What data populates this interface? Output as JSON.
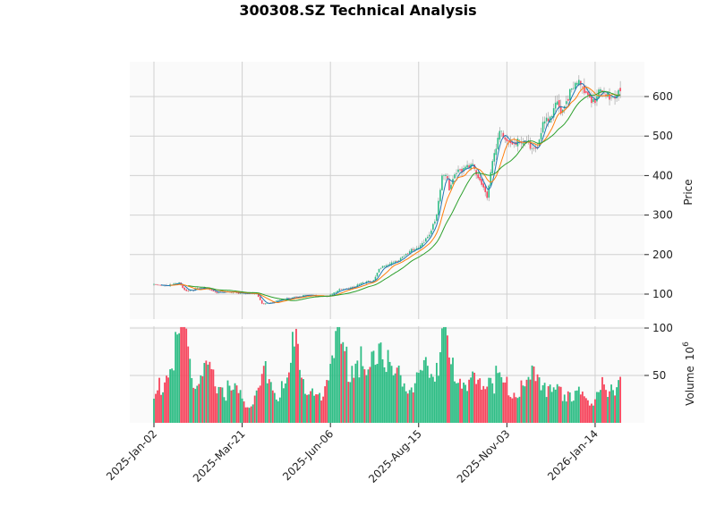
{
  "chart_data": {
    "type": "candlestick",
    "title": "300308.SZ Technical Analysis",
    "ylabel": "Price",
    "volume_label": "Volume",
    "volume_exponent": "10",
    "volume_exponent_power": "6",
    "ylim": [
      36,
      688
    ],
    "volume_ylim": [
      0,
      102
    ],
    "trading_days": 260,
    "x_ticks": [
      {
        "day": 0,
        "label": "2025-Jan-02"
      },
      {
        "day": 49,
        "label": "2025-Mar-21"
      },
      {
        "day": 98,
        "label": "2025-Jun-06"
      },
      {
        "day": 147,
        "label": "2025-Aug-15"
      },
      {
        "day": 196,
        "label": "2025-Nov-03"
      },
      {
        "day": 245,
        "label": "2026-Jan-14"
      }
    ],
    "y_ticks": [
      100,
      200,
      300,
      400,
      500,
      600
    ],
    "volume_ticks": [
      50,
      100
    ],
    "moving_averages": [
      {
        "period": 5,
        "color": "#1f77b4"
      },
      {
        "period": 10,
        "color": "#ff7f0e"
      },
      {
        "period": 20,
        "color": "#2ca02c"
      }
    ],
    "up_color": "#2ebd85",
    "down_color": "#f6465d",
    "close_keypoints": [
      [
        0,
        125
      ],
      [
        8,
        122
      ],
      [
        14,
        127
      ],
      [
        18,
        108
      ],
      [
        22,
        112
      ],
      [
        30,
        114
      ],
      [
        35,
        105
      ],
      [
        50,
        103
      ],
      [
        57,
        100
      ],
      [
        60,
        75
      ],
      [
        66,
        80
      ],
      [
        79,
        94
      ],
      [
        84,
        96
      ],
      [
        97,
        95
      ],
      [
        103,
        110
      ],
      [
        113,
        122
      ],
      [
        122,
        135
      ],
      [
        125,
        165
      ],
      [
        133,
        178
      ],
      [
        140,
        205
      ],
      [
        147,
        215
      ],
      [
        153,
        255
      ],
      [
        157,
        300
      ],
      [
        160,
        395
      ],
      [
        162,
        400
      ],
      [
        164,
        370
      ],
      [
        168,
        415
      ],
      [
        177,
        420
      ],
      [
        181,
        395
      ],
      [
        185,
        350
      ],
      [
        188,
        430
      ],
      [
        192,
        505
      ],
      [
        196,
        490
      ],
      [
        200,
        485
      ],
      [
        206,
        478
      ],
      [
        213,
        480
      ],
      [
        216,
        530
      ],
      [
        221,
        540
      ],
      [
        224,
        590
      ],
      [
        226,
        565
      ],
      [
        231,
        610
      ],
      [
        236,
        630
      ],
      [
        241,
        605
      ],
      [
        245,
        590
      ],
      [
        248,
        615
      ],
      [
        251,
        600
      ],
      [
        256,
        610
      ],
      [
        259,
        620
      ]
    ],
    "volume_keypoints": [
      [
        0,
        25
      ],
      [
        5,
        45
      ],
      [
        10,
        60
      ],
      [
        14,
        85
      ],
      [
        18,
        98
      ],
      [
        22,
        40
      ],
      [
        30,
        50
      ],
      [
        40,
        35
      ],
      [
        48,
        30
      ],
      [
        52,
        18
      ],
      [
        58,
        30
      ],
      [
        62,
        65
      ],
      [
        68,
        25
      ],
      [
        75,
        45
      ],
      [
        79,
        100
      ],
      [
        85,
        30
      ],
      [
        92,
        25
      ],
      [
        98,
        70
      ],
      [
        102,
        87
      ],
      [
        108,
        60
      ],
      [
        113,
        75
      ],
      [
        118,
        45
      ],
      [
        126,
        93
      ],
      [
        132,
        50
      ],
      [
        140,
        45
      ],
      [
        147,
        40
      ],
      [
        152,
        55
      ],
      [
        158,
        70
      ],
      [
        161,
        95
      ],
      [
        165,
        60
      ],
      [
        172,
        45
      ],
      [
        180,
        40
      ],
      [
        186,
        50
      ],
      [
        192,
        45
      ],
      [
        196,
        40
      ],
      [
        202,
        30
      ],
      [
        208,
        40
      ],
      [
        214,
        55
      ],
      [
        220,
        30
      ],
      [
        228,
        35
      ],
      [
        235,
        30
      ],
      [
        242,
        20
      ],
      [
        248,
        40
      ],
      [
        252,
        25
      ],
      [
        256,
        35
      ],
      [
        259,
        55
      ]
    ]
  }
}
